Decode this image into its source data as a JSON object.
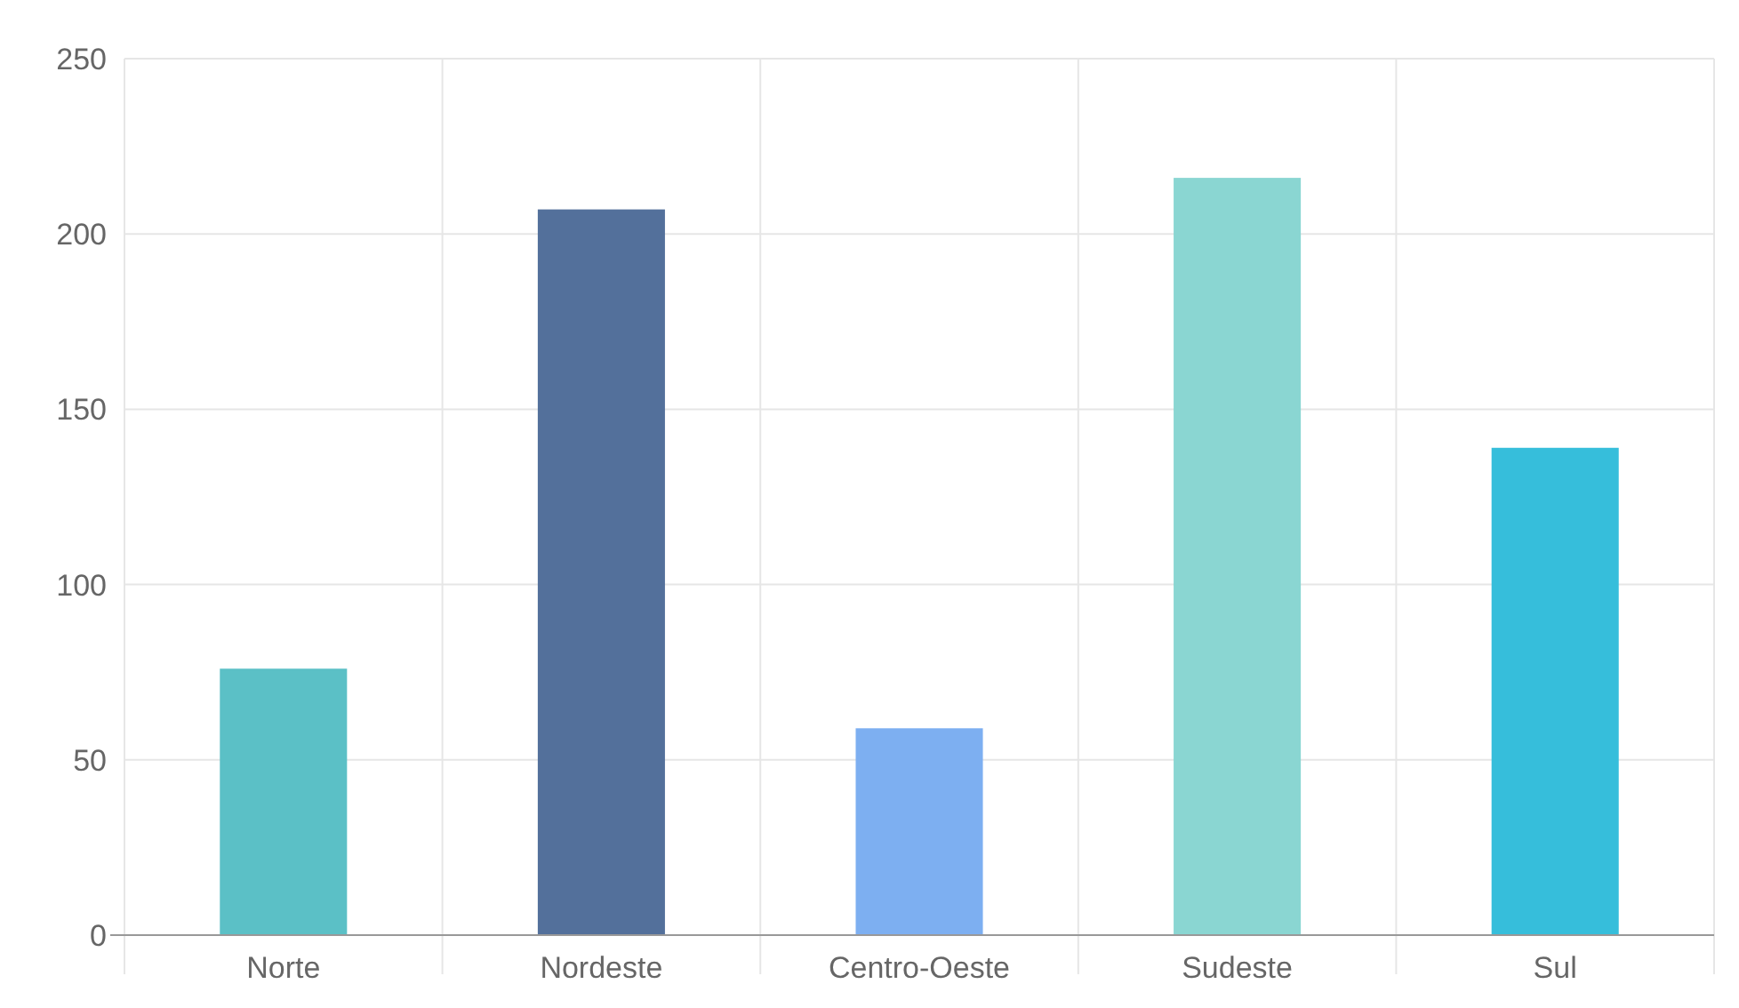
{
  "chart_data": {
    "type": "bar",
    "categories": [
      "Norte",
      "Nordeste",
      "Centro-Oeste",
      "Sudeste",
      "Sul"
    ],
    "values": [
      76,
      207,
      59,
      216,
      139
    ],
    "colors": [
      "#5bc0c6",
      "#53709b",
      "#7daff1",
      "#8ad6d2",
      "#36bedb"
    ],
    "ylim": [
      0,
      250
    ],
    "yticks": [
      0,
      50,
      100,
      150,
      200,
      250
    ],
    "grid": true
  }
}
